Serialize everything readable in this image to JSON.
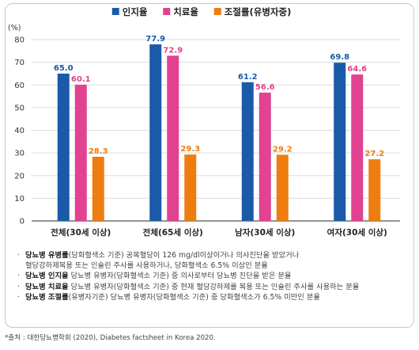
{
  "chart_data": {
    "type": "bar",
    "title": "",
    "xlabel": "",
    "ylabel": "",
    "unit_label": "(%)",
    "ylim": [
      0,
      80
    ],
    "yticks": [
      0,
      10,
      20,
      30,
      40,
      50,
      60,
      70,
      80
    ],
    "grid": true,
    "legend_position": "top-center",
    "categories": [
      "전체(30세 이상)",
      "전체(65세 이상)",
      "남자(30세 이상)",
      "여자(30세 이상)"
    ],
    "series": [
      {
        "name": "인지율",
        "color": "#1a5aa8",
        "label_color": "#1a5aa8",
        "values": [
          65.0,
          77.9,
          61.2,
          69.8
        ]
      },
      {
        "name": "치료율",
        "color": "#e2428f",
        "label_color": "#e2428f",
        "values": [
          60.1,
          72.9,
          56.6,
          64.6
        ]
      },
      {
        "name": "조절률(유병자중)",
        "color": "#ee7d0f",
        "label_color": "#ee7d0f",
        "values": [
          28.3,
          29.3,
          29.2,
          27.2
        ]
      }
    ]
  },
  "notes": [
    {
      "bold": "당뇨병 유병률",
      "text": "(당화혈색소 기준) 공복혈당이 126 mg/dl이상이거나 의사진단을 받았거나",
      "line2": "혈당강하제복용 또는 인슐린 주사를 사용하거나, 당화혈색소 6.5% 이상인 분율"
    },
    {
      "bold": "당뇨병 인지율",
      "text": " 당뇨병 유병자(당화혈색소 기준) 중 의사로부터 당뇨병 진단을 받은 분율",
      "line2": ""
    },
    {
      "bold": "당뇨병 치료율",
      "text": " 당뇨병 유병자(당화혈색소 기준) 중 현재 혈당강하제를 복용 또는 인슐린 주사를 사용하는 분율",
      "line2": ""
    },
    {
      "bold": "당뇨병 조절률",
      "text": "(유병자기준) 당뇨병 유병자(당화혈색소 기준) 중 당화혈색소가 6.5% 미만인 분율",
      "line2": ""
    }
  ],
  "source": "*출처 : 대한당뇨병학회 (2020), Diabetes factsheet in Korea 2020."
}
